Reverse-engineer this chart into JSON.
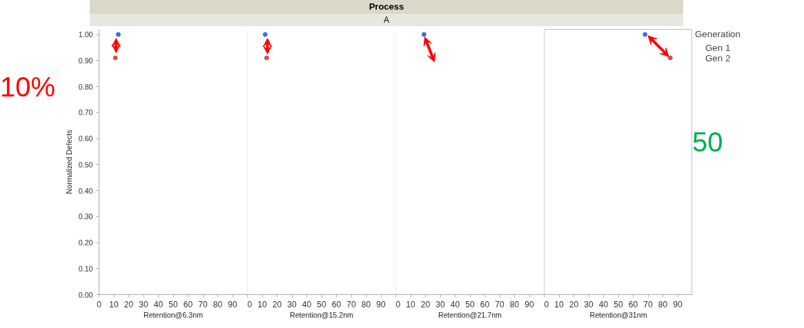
{
  "chart_data": [
    {
      "type": "scatter",
      "xlabel": "Retention@6.3nm",
      "ylabel": "Normalized Defects",
      "annotations": [
        "10%"
      ],
      "xlim": [
        0,
        100
      ],
      "xticks": [
        0,
        10,
        20,
        30,
        40,
        50,
        60,
        70,
        80,
        90
      ],
      "ylim": [
        0,
        1.02
      ],
      "yticks": [
        {
          "value": 0,
          "label": "0.00"
        },
        {
          "value": 0.1,
          "label": "0.10"
        },
        {
          "value": 0.2,
          "label": "0.20"
        },
        {
          "value": 0.3,
          "label": "0.30"
        },
        {
          "value": 0.4,
          "label": "0.40"
        },
        {
          "value": 0.5,
          "label": "0.50"
        },
        {
          "value": 0.6,
          "label": "0.60"
        },
        {
          "value": 0.7,
          "label": "0.70"
        },
        {
          "value": 0.8,
          "label": "0.80"
        },
        {
          "value": 0.9,
          "label": "0.90"
        },
        {
          "value": 1,
          "label": "1.00"
        }
      ],
      "marker": "circle",
      "grid": false,
      "legend": false,
      "series": [
        {
          "color": "#3f6fd8",
          "x": [
            13
          ],
          "values": [
            1.0
          ]
        },
        {
          "color": "#d0505f",
          "x": [
            11
          ],
          "values": [
            0.91
          ]
        }
      ]
    },
    {
      "type": "scatter",
      "subtitle": "A",
      "xlabel": "Retention@15.2nm",
      "xlim": [
        0,
        100
      ],
      "xticks": [
        0,
        10,
        20,
        30,
        40,
        50,
        60,
        70,
        80,
        90
      ],
      "ylim": [
        0,
        1.02
      ],
      "tick_labels": "x",
      "marker": "circle",
      "grid": false,
      "legend": false,
      "series": [
        {
          "color": "#3f6fd8",
          "x": [
            12
          ],
          "values": [
            1.0
          ]
        },
        {
          "color": "#d0505f",
          "x": [
            13
          ],
          "values": [
            0.91
          ]
        }
      ]
    },
    {
      "type": "scatter",
      "title": "Process",
      "xlabel": "Retention@21.7nm",
      "xlim": [
        0,
        100
      ],
      "xticks": [
        0,
        10,
        20,
        30,
        40,
        50,
        60,
        70,
        80,
        90
      ],
      "ylim": [
        0,
        1.02
      ],
      "tick_labels": "x",
      "marker": "circle",
      "grid": false,
      "legend": false,
      "series": [
        {
          "color": "#3f6fd8",
          "x": [
            19
          ],
          "values": [
            1.0
          ]
        }
      ]
    },
    {
      "type": "scatter",
      "xlabel": "Retention@31nm",
      "xlim": [
        0,
        100
      ],
      "xticks": [
        0,
        10,
        20,
        30,
        40,
        50,
        60,
        70,
        80,
        90
      ],
      "ylim": [
        0,
        1.02
      ],
      "tick_labels": "x",
      "marker": "circle",
      "grid": false,
      "legend": "right",
      "legend_title": "Generation",
      "annotations": [
        "50"
      ],
      "series": [
        {
          "name": "Gen 1",
          "color": "#3f6fd8",
          "x": [
            68
          ],
          "values": [
            1.0
          ]
        },
        {
          "name": "Gen 2",
          "color": "#d0505f",
          "x": [
            85
          ],
          "values": [
            0.91
          ]
        }
      ]
    }
  ]
}
